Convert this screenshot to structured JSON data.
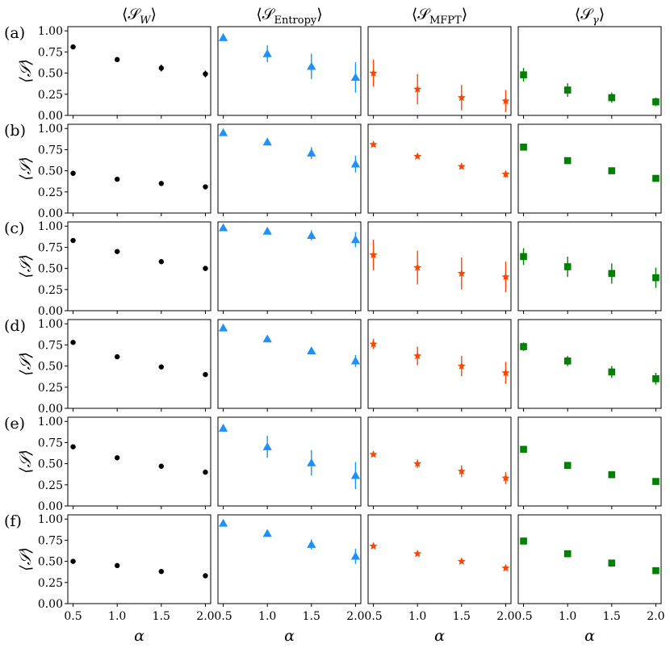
{
  "figure": {
    "column_titles": [
      {
        "main": "⟨𝒮",
        "sub": "W",
        "sub_italic": true,
        "close": "⟩"
      },
      {
        "main": "⟨𝒮",
        "sub": "Entropy",
        "sub_italic": false,
        "close": "⟩"
      },
      {
        "main": "⟨𝒮",
        "sub": "MFPT",
        "sub_italic": false,
        "close": "⟩"
      },
      {
        "main": "⟨𝒮",
        "sub": "γ",
        "sub_italic": true,
        "close": "⟩"
      }
    ],
    "row_labels": [
      "(a)",
      "(b)",
      "(c)",
      "(d)",
      "(e)",
      "(f)"
    ],
    "ylabel": "⟨𝒮⟩",
    "xlabel": "α",
    "series_styles": [
      {
        "marker": "circle",
        "color": "#000000"
      },
      {
        "marker": "triangle",
        "color": "#1e90ff"
      },
      {
        "marker": "star",
        "color": "#ff4500"
      },
      {
        "marker": "square",
        "color": "#008000"
      }
    ]
  },
  "chart_data": {
    "type": "scatter",
    "x": [
      0.5,
      1.0,
      1.5,
      2.0
    ],
    "xticks": [
      "0.5",
      "1.0",
      "1.5",
      "2.0"
    ],
    "yticks": [
      "0.00",
      "0.25",
      "0.50",
      "0.75",
      "1.00"
    ],
    "xlim": [
      0.44,
      2.06
    ],
    "ylim": [
      0.0,
      1.05
    ],
    "grid": false,
    "panels": [
      [
        {
          "y": [
            0.81,
            0.66,
            0.56,
            0.49
          ],
          "err": [
            0.02,
            0.03,
            0.04,
            0.04
          ]
        },
        {
          "y": [
            0.92,
            0.73,
            0.58,
            0.45
          ],
          "err": [
            0.03,
            0.1,
            0.15,
            0.18
          ]
        },
        {
          "y": [
            0.5,
            0.31,
            0.21,
            0.17
          ],
          "err": [
            0.16,
            0.18,
            0.15,
            0.13
          ]
        },
        {
          "y": [
            0.48,
            0.3,
            0.21,
            0.16
          ],
          "err": [
            0.08,
            0.08,
            0.06,
            0.05
          ]
        }
      ],
      [
        {
          "y": [
            0.47,
            0.4,
            0.35,
            0.31
          ],
          "err": [
            0.01,
            0.01,
            0.01,
            0.01
          ]
        },
        {
          "y": [
            0.95,
            0.84,
            0.71,
            0.58
          ],
          "err": [
            0.01,
            0.02,
            0.07,
            0.1
          ]
        },
        {
          "y": [
            0.81,
            0.67,
            0.55,
            0.46
          ],
          "err": [
            0.01,
            0.01,
            0.01,
            0.04
          ]
        },
        {
          "y": [
            0.78,
            0.62,
            0.5,
            0.41
          ],
          "err": [
            0.01,
            0.01,
            0.01,
            0.01
          ]
        }
      ],
      [
        {
          "y": [
            0.83,
            0.7,
            0.58,
            0.5
          ],
          "err": [
            0.01,
            0.01,
            0.01,
            0.01
          ]
        },
        {
          "y": [
            0.98,
            0.94,
            0.89,
            0.84
          ],
          "err": [
            0.01,
            0.02,
            0.06,
            0.09
          ]
        },
        {
          "y": [
            0.66,
            0.51,
            0.44,
            0.4
          ],
          "err": [
            0.18,
            0.2,
            0.19,
            0.18
          ]
        },
        {
          "y": [
            0.64,
            0.52,
            0.44,
            0.39
          ],
          "err": [
            0.1,
            0.12,
            0.12,
            0.12
          ]
        }
      ],
      [
        {
          "y": [
            0.78,
            0.61,
            0.49,
            0.4
          ],
          "err": [
            0.01,
            0.01,
            0.01,
            0.01
          ]
        },
        {
          "y": [
            0.95,
            0.82,
            0.68,
            0.56
          ],
          "err": [
            0.01,
            0.01,
            0.03,
            0.07
          ]
        },
        {
          "y": [
            0.76,
            0.62,
            0.5,
            0.42
          ],
          "err": [
            0.06,
            0.11,
            0.12,
            0.13
          ]
        },
        {
          "y": [
            0.73,
            0.56,
            0.43,
            0.35
          ],
          "err": [
            0.05,
            0.06,
            0.07,
            0.07
          ]
        }
      ],
      [
        {
          "y": [
            0.7,
            0.57,
            0.47,
            0.4
          ],
          "err": [
            0.01,
            0.01,
            0.03,
            0.03
          ]
        },
        {
          "y": [
            0.92,
            0.7,
            0.51,
            0.36
          ],
          "err": [
            0.04,
            0.13,
            0.15,
            0.16
          ]
        },
        {
          "y": [
            0.61,
            0.5,
            0.41,
            0.33
          ],
          "err": [
            0.02,
            0.05,
            0.07,
            0.07
          ]
        },
        {
          "y": [
            0.67,
            0.48,
            0.37,
            0.29
          ],
          "err": [
            0.02,
            0.04,
            0.04,
            0.03
          ]
        }
      ],
      [
        {
          "y": [
            0.5,
            0.45,
            0.38,
            0.33
          ],
          "err": [
            0.01,
            0.01,
            0.01,
            0.01
          ]
        },
        {
          "y": [
            0.95,
            0.83,
            0.7,
            0.56
          ],
          "err": [
            0.01,
            0.01,
            0.06,
            0.09
          ]
        },
        {
          "y": [
            0.68,
            0.59,
            0.5,
            0.42
          ],
          "err": [
            0.01,
            0.01,
            0.01,
            0.01
          ]
        },
        {
          "y": [
            0.74,
            0.59,
            0.48,
            0.39
          ],
          "err": [
            0.01,
            0.01,
            0.01,
            0.01
          ]
        }
      ]
    ]
  }
}
